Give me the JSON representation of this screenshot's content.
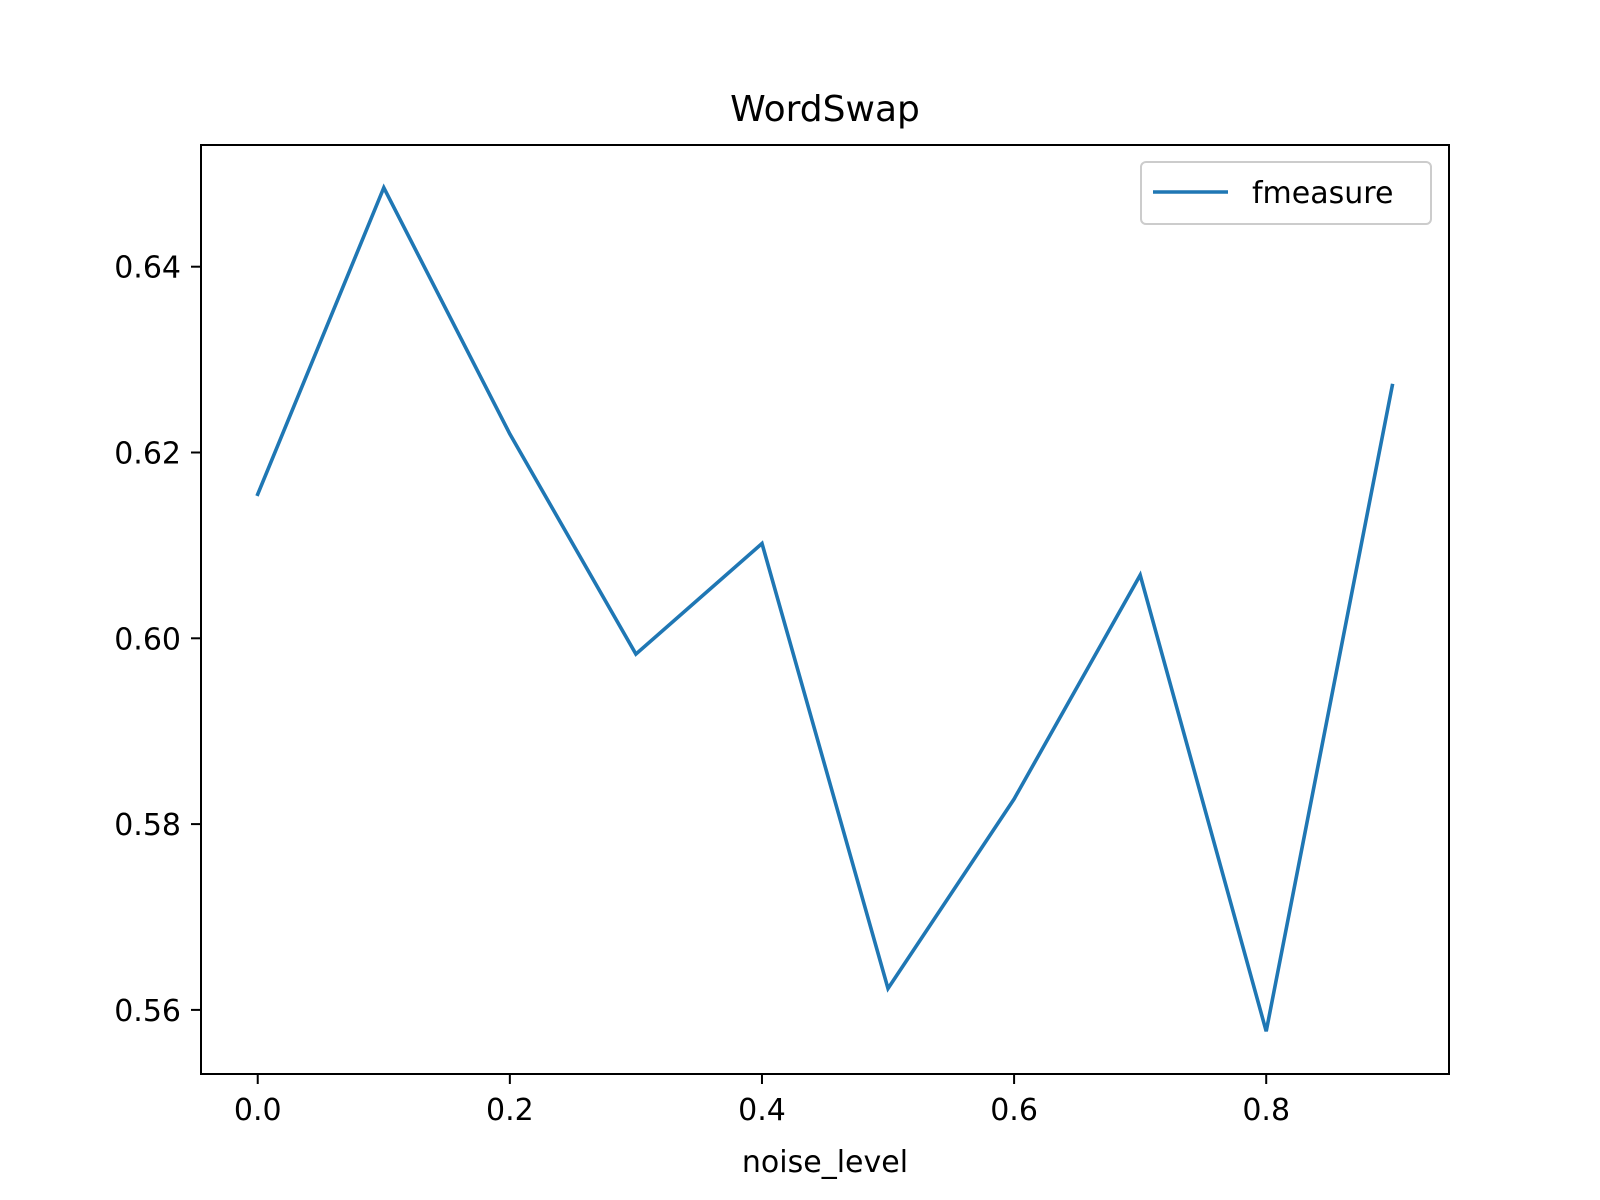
{
  "chart_data": {
    "type": "line",
    "title": "WordSwap",
    "xlabel": "noise_level",
    "ylabel": "",
    "x": [
      0.0,
      0.1,
      0.2,
      0.3,
      0.4,
      0.5,
      0.6,
      0.7,
      0.8,
      0.9
    ],
    "series": [
      {
        "name": "fmeasure",
        "color": "#1f77b4",
        "values": [
          0.6155,
          0.6485,
          0.622,
          0.5983,
          0.6102,
          0.5623,
          0.5827,
          0.6068,
          0.5577,
          0.6272
        ]
      }
    ],
    "xlim": [
      -0.045,
      0.945
    ],
    "ylim": [
      0.5531,
      0.6531
    ],
    "xticks": [
      0.0,
      0.2,
      0.4,
      0.6,
      0.8
    ],
    "xtick_labels": [
      "0.0",
      "0.2",
      "0.4",
      "0.6",
      "0.8"
    ],
    "yticks": [
      0.56,
      0.58,
      0.6,
      0.62,
      0.64
    ],
    "ytick_labels": [
      "0.56",
      "0.58",
      "0.60",
      "0.62",
      "0.64"
    ],
    "grid": false,
    "legend": "top-right"
  }
}
